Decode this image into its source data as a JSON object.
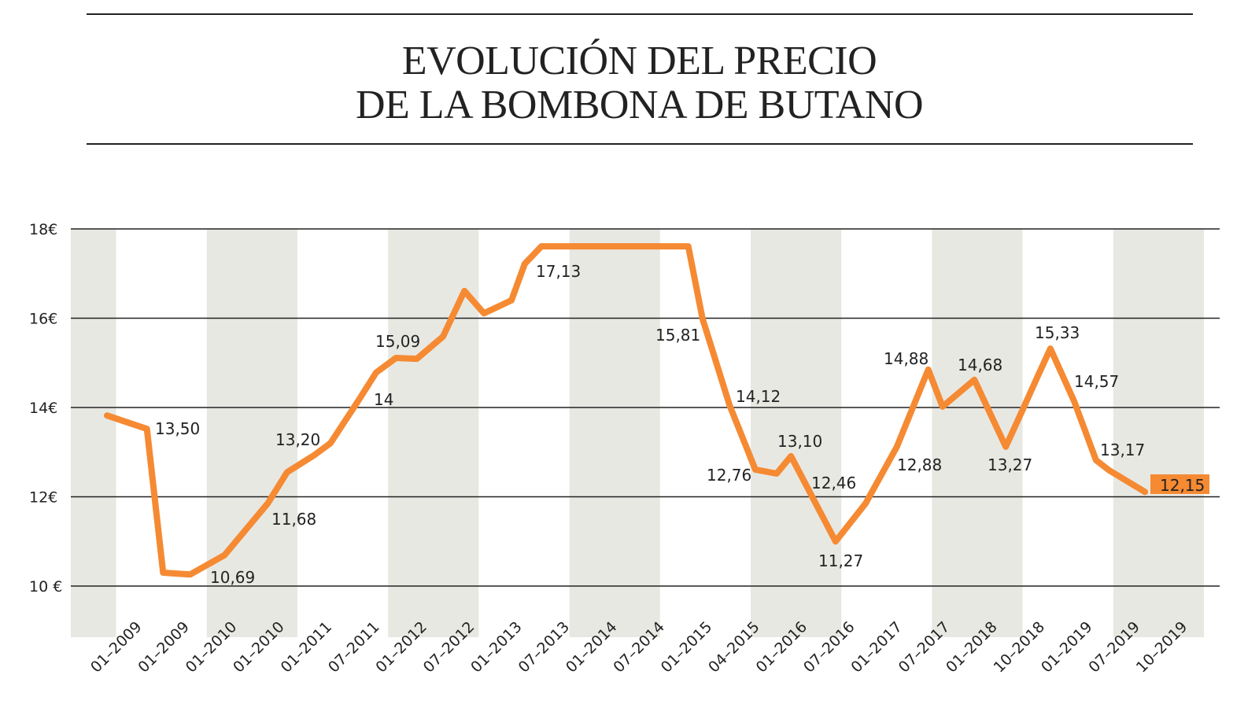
{
  "title_line1": "EVOLUCIÓN DEL PRECIO",
  "title_line2": "DE LA BOMBONA DE BUTANO",
  "chart_data": {
    "type": "line",
    "title": "EVOLUCIÓN DEL PRECIO DE LA BOMBONA DE BUTANO",
    "ylim": [
      10,
      18
    ],
    "yticks": [
      10,
      12,
      14,
      16,
      18
    ],
    "ytick_labels": [
      "10 €",
      "12€",
      "14€",
      "16€",
      "18€"
    ],
    "grid": "horizontal",
    "colors": {
      "line": "#f58a33",
      "band": "#e8e8e3",
      "highlight": "#f58a33"
    },
    "categories": [
      "01-2009",
      "01-2009",
      "01-2010",
      "01-2010",
      "01-2011",
      "07-2011",
      "01-2012",
      "07-2012",
      "01-2013",
      "07-2013",
      "01-2014",
      "07-2014",
      "01-2015",
      "04-2015",
      "01-2016",
      "07-2016",
      "01-2017",
      "07-2017",
      "01-2018",
      "10-2018",
      "01-2019",
      "07-2019",
      "10-2019"
    ],
    "points": [
      {
        "x": 0,
        "y": 13.82
      },
      {
        "x": 0.84,
        "y": 13.52
      },
      {
        "x": 1.18,
        "y": 10.3
      },
      {
        "x": 1.75,
        "y": 10.26
      },
      {
        "x": 2.47,
        "y": 10.69
      },
      {
        "x": 3.38,
        "y": 11.85
      },
      {
        "x": 3.79,
        "y": 12.55
      },
      {
        "x": 4.37,
        "y": 12.94
      },
      {
        "x": 4.7,
        "y": 13.2
      },
      {
        "x": 5.28,
        "y": 14.14
      },
      {
        "x": 5.66,
        "y": 14.78
      },
      {
        "x": 6.08,
        "y": 15.11
      },
      {
        "x": 6.52,
        "y": 15.09
      },
      {
        "x": 7.07,
        "y": 15.59
      },
      {
        "x": 7.52,
        "y": 16.61
      },
      {
        "x": 7.93,
        "y": 16.11
      },
      {
        "x": 8.51,
        "y": 16.4
      },
      {
        "x": 8.79,
        "y": 17.22
      },
      {
        "x": 9.14,
        "y": 17.61
      },
      {
        "x": 12.23,
        "y": 17.61
      },
      {
        "x": 12.53,
        "y": 15.99
      },
      {
        "x": 13.1,
        "y": 14.05
      },
      {
        "x": 13.64,
        "y": 12.61
      },
      {
        "x": 14.09,
        "y": 12.52
      },
      {
        "x": 14.39,
        "y": 12.91
      },
      {
        "x": 14.72,
        "y": 12.24
      },
      {
        "x": 15.33,
        "y": 11.0
      },
      {
        "x": 15.96,
        "y": 11.85
      },
      {
        "x": 16.62,
        "y": 13.12
      },
      {
        "x": 17.28,
        "y": 14.85
      },
      {
        "x": 17.58,
        "y": 14.02
      },
      {
        "x": 18.25,
        "y": 14.62
      },
      {
        "x": 18.91,
        "y": 13.12
      },
      {
        "x": 19.27,
        "y": 13.96
      },
      {
        "x": 19.57,
        "y": 14.67
      },
      {
        "x": 19.85,
        "y": 15.32
      },
      {
        "x": 20.35,
        "y": 14.14
      },
      {
        "x": 20.81,
        "y": 12.82
      },
      {
        "x": 21.09,
        "y": 12.59
      },
      {
        "x": 21.84,
        "y": 12.11
      }
    ],
    "data_labels": [
      "13,50",
      "10,69",
      "11,68",
      "13,20",
      "14",
      "15,09",
      "17,13",
      "15,81",
      "14,12",
      "12,76",
      "13,10",
      "12,46",
      "11,27",
      "12,88",
      "14,88",
      "14,68",
      "13,27",
      "15,33",
      "14,57",
      "13,17",
      "12,15"
    ]
  }
}
